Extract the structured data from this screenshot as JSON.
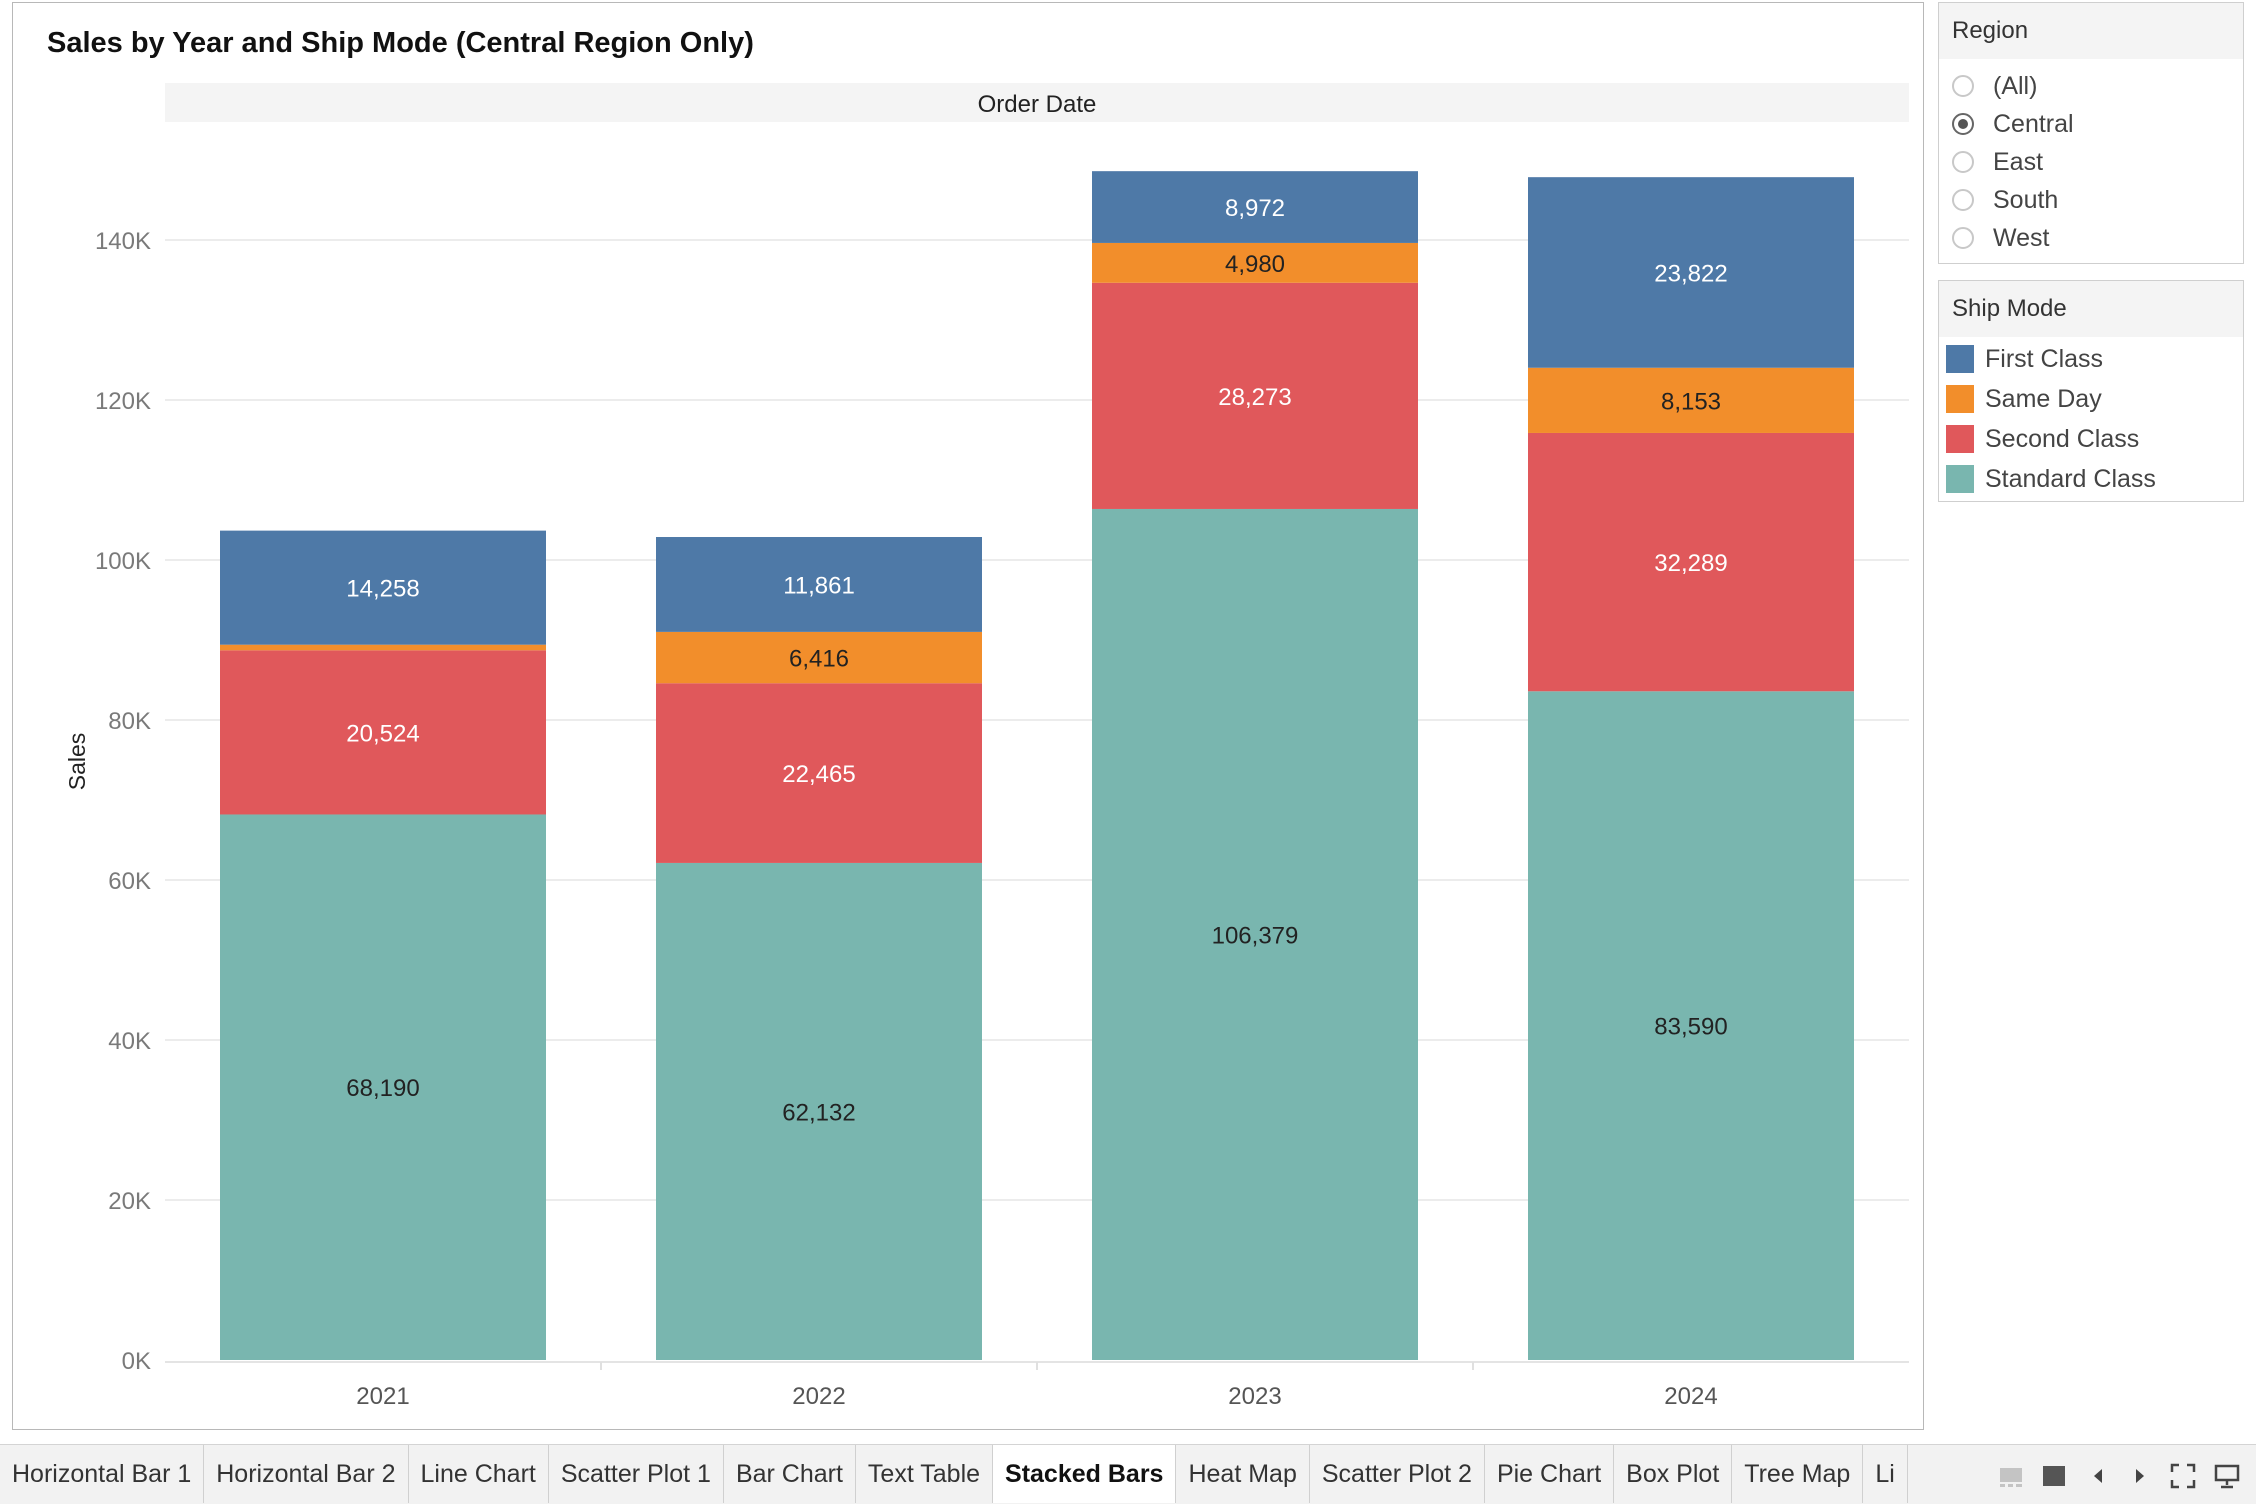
{
  "chart_data": {
    "type": "bar",
    "stacked": true,
    "title": "Sales by Year and Ship Mode (Central Region Only)",
    "column_header": "Order Date",
    "xlabel": "",
    "ylabel": "Sales",
    "categories": [
      "2021",
      "2022",
      "2023",
      "2024"
    ],
    "ylim": [
      0,
      150000
    ],
    "yticks": [
      0,
      20000,
      40000,
      60000,
      80000,
      100000,
      120000,
      140000
    ],
    "ytick_labels": [
      "0K",
      "20K",
      "40K",
      "60K",
      "80K",
      "100K",
      "120K",
      "140K"
    ],
    "grid": true,
    "legend_position": "right",
    "series": [
      {
        "name": "Standard Class",
        "color": "#79b6af",
        "label_color": "#222222",
        "values": [
          68190,
          62132,
          106379,
          83590
        ],
        "labels": [
          "68,190",
          "62,132",
          "106,379",
          "83,590"
        ]
      },
      {
        "name": "Second Class",
        "color": "#e0585b",
        "label_color": "#ffffff",
        "values": [
          20524,
          22465,
          28273,
          32289
        ],
        "labels": [
          "20,524",
          "22,465",
          "28,273",
          "32,289"
        ]
      },
      {
        "name": "Same Day",
        "color": "#f28e2b",
        "label_color": "#222222",
        "values": [
          700,
          6416,
          4980,
          8153
        ],
        "labels": [
          "",
          "6,416",
          "4,980",
          "8,153"
        ]
      },
      {
        "name": "First Class",
        "color": "#4e79a7",
        "label_color": "#ffffff",
        "values": [
          14258,
          11861,
          8972,
          23822
        ],
        "labels": [
          "14,258",
          "11,861",
          "8,972",
          "23,822"
        ]
      }
    ]
  },
  "filters": {
    "region": {
      "title": "Region",
      "options": [
        "(All)",
        "Central",
        "East",
        "South",
        "West"
      ],
      "selected": "Central"
    }
  },
  "legend": {
    "title": "Ship Mode",
    "items": [
      {
        "label": "First Class",
        "color": "#4e79a7"
      },
      {
        "label": "Same Day",
        "color": "#f28e2b"
      },
      {
        "label": "Second Class",
        "color": "#e0585b"
      },
      {
        "label": "Standard Class",
        "color": "#79b6af"
      }
    ]
  },
  "tabs": {
    "items": [
      "Horizontal Bar 1",
      "Horizontal Bar 2",
      "Line Chart",
      "Scatter Plot 1",
      "Bar Chart",
      "Text Table",
      "Stacked Bars",
      "Heat Map",
      "Scatter Plot 2",
      "Pie Chart",
      "Box Plot",
      "Tree Map",
      "Li"
    ],
    "active": "Stacked Bars",
    "controls": [
      "show-filmstrip-icon",
      "show-tabs-icon",
      "previous-sheet-icon",
      "next-sheet-icon",
      "fullscreen-icon",
      "presentation-mode-icon"
    ]
  }
}
